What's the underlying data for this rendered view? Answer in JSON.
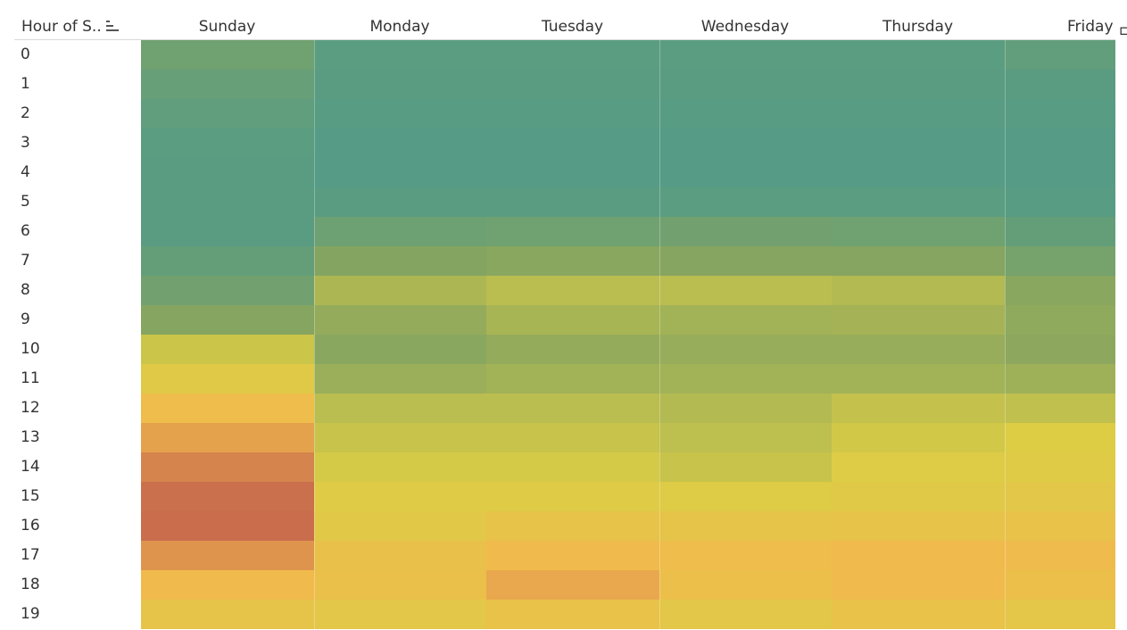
{
  "chart_data": {
    "type": "heatmap",
    "row_field": "Hour of S..",
    "columns": [
      "Sunday",
      "Monday",
      "Tuesday",
      "Wednesday",
      "Thursday",
      "Friday"
    ],
    "rows": [
      "0",
      "1",
      "2",
      "3",
      "4",
      "5",
      "6",
      "7",
      "8",
      "9",
      "10",
      "11",
      "12",
      "13",
      "14",
      "15",
      "16",
      "17",
      "18",
      "19"
    ],
    "color_scale": [
      "#4e9a8a",
      "#86a560",
      "#dccd45",
      "#f2b94d",
      "#c5664d"
    ],
    "values": [
      [
        0.15,
        0.06,
        0.06,
        0.06,
        0.06,
        0.09
      ],
      [
        0.11,
        0.05,
        0.05,
        0.05,
        0.05,
        0.05
      ],
      [
        0.08,
        0.04,
        0.04,
        0.04,
        0.04,
        0.04
      ],
      [
        0.06,
        0.03,
        0.03,
        0.03,
        0.03,
        0.03
      ],
      [
        0.05,
        0.03,
        0.03,
        0.03,
        0.03,
        0.03
      ],
      [
        0.05,
        0.05,
        0.05,
        0.06,
        0.06,
        0.04
      ],
      [
        0.05,
        0.14,
        0.15,
        0.16,
        0.15,
        0.1
      ],
      [
        0.1,
        0.24,
        0.26,
        0.25,
        0.25,
        0.18
      ],
      [
        0.16,
        0.36,
        0.4,
        0.4,
        0.38,
        0.26
      ],
      [
        0.25,
        0.29,
        0.35,
        0.33,
        0.34,
        0.28
      ],
      [
        0.45,
        0.26,
        0.29,
        0.3,
        0.3,
        0.27
      ],
      [
        0.55,
        0.31,
        0.33,
        0.33,
        0.33,
        0.32
      ],
      [
        0.7,
        0.4,
        0.4,
        0.38,
        0.43,
        0.42
      ],
      [
        0.82,
        0.44,
        0.44,
        0.41,
        0.47,
        0.5
      ],
      [
        0.91,
        0.48,
        0.48,
        0.44,
        0.52,
        0.53
      ],
      [
        0.97,
        0.53,
        0.53,
        0.52,
        0.55,
        0.58
      ],
      [
        0.98,
        0.56,
        0.62,
        0.61,
        0.62,
        0.64
      ],
      [
        0.86,
        0.65,
        0.73,
        0.7,
        0.74,
        0.72
      ],
      [
        0.73,
        0.66,
        0.8,
        0.68,
        0.74,
        0.67
      ],
      [
        0.61,
        0.58,
        0.64,
        0.58,
        0.64,
        0.59
      ]
    ]
  }
}
